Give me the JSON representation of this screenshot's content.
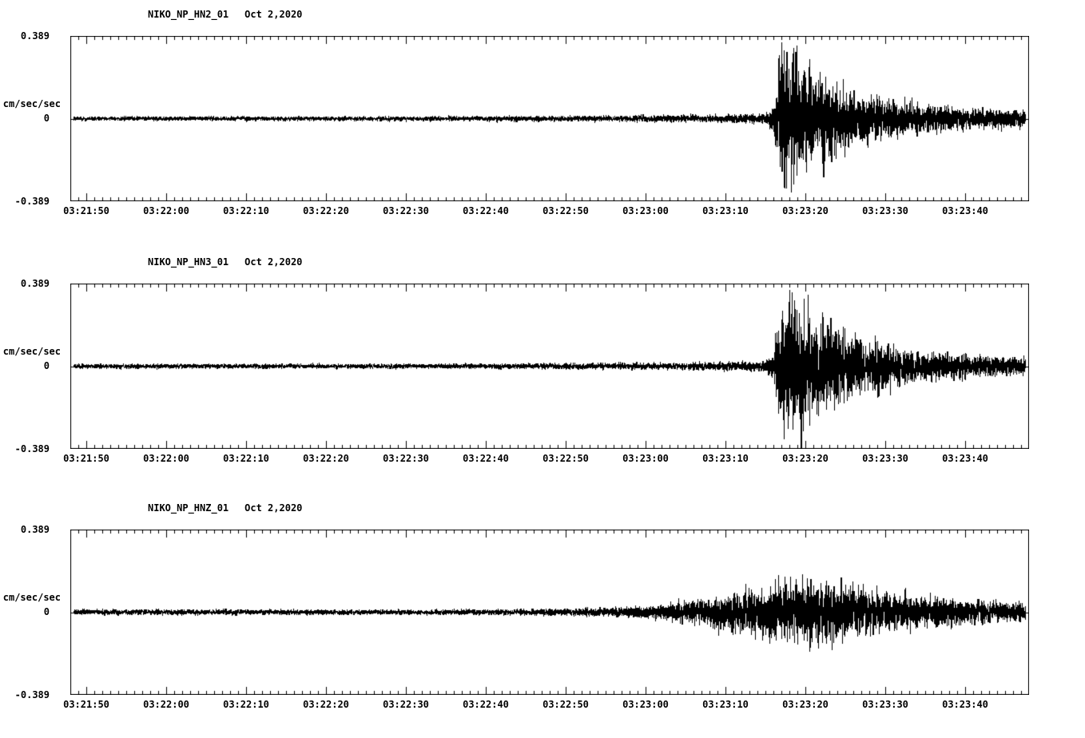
{
  "page": {
    "background": "#ffffff",
    "trace_color": "#000000"
  },
  "chart_data": [
    {
      "type": "line",
      "kind": "seismogram",
      "station": "NIKO_NP_HN2_01",
      "date": "Oct 2,2020",
      "ylabel": "cm/sec/sec",
      "ylim": [
        -0.389,
        0.389
      ],
      "ytick_labels": [
        "0.389",
        "0",
        "-0.389"
      ],
      "x_tick_labels": [
        "03:21:50",
        "03:22:00",
        "03:22:10",
        "03:22:20",
        "03:22:30",
        "03:22:40",
        "03:22:50",
        "03:23:00",
        "03:23:10",
        "03:23:20",
        "03:23:30",
        "03:23:40"
      ],
      "x_start_offset_s": 2,
      "x_tick_interval_s": 10,
      "duration_s": 120,
      "seed": 101,
      "envelope": [
        [
          0,
          0.007
        ],
        [
          30,
          0.0075
        ],
        [
          50,
          0.008
        ],
        [
          60,
          0.009
        ],
        [
          68,
          0.01
        ],
        [
          75,
          0.012
        ],
        [
          80,
          0.013
        ],
        [
          84,
          0.015
        ],
        [
          87,
          0.018
        ],
        [
          88,
          0.05
        ],
        [
          88.6,
          0.16
        ],
        [
          89.3,
          0.24
        ],
        [
          90.2,
          0.22
        ],
        [
          91,
          0.19
        ],
        [
          92,
          0.16
        ],
        [
          93.5,
          0.14
        ],
        [
          95,
          0.12
        ],
        [
          97,
          0.1
        ],
        [
          99,
          0.085
        ],
        [
          101,
          0.07
        ],
        [
          103,
          0.058
        ],
        [
          105,
          0.05
        ],
        [
          108,
          0.042
        ],
        [
          111,
          0.036
        ],
        [
          114,
          0.032
        ],
        [
          117,
          0.028
        ],
        [
          120,
          0.026
        ]
      ]
    },
    {
      "type": "line",
      "kind": "seismogram",
      "station": "NIKO_NP_HN3_01",
      "date": "Oct 2,2020",
      "ylabel": "cm/sec/sec",
      "ylim": [
        -0.389,
        0.389
      ],
      "ytick_labels": [
        "0.389",
        "0",
        "-0.389"
      ],
      "x_tick_labels": [
        "03:21:50",
        "03:22:00",
        "03:22:10",
        "03:22:20",
        "03:22:30",
        "03:22:40",
        "03:22:50",
        "03:23:00",
        "03:23:10",
        "03:23:20",
        "03:23:30",
        "03:23:40"
      ],
      "x_start_offset_s": 2,
      "x_tick_interval_s": 10,
      "duration_s": 120,
      "seed": 202,
      "envelope": [
        [
          0,
          0.008
        ],
        [
          30,
          0.008
        ],
        [
          50,
          0.0085
        ],
        [
          60,
          0.0095
        ],
        [
          68,
          0.011
        ],
        [
          75,
          0.012
        ],
        [
          80,
          0.014
        ],
        [
          84,
          0.016
        ],
        [
          87,
          0.019
        ],
        [
          88,
          0.05
        ],
        [
          88.6,
          0.17
        ],
        [
          89.3,
          0.25
        ],
        [
          90.2,
          0.22
        ],
        [
          91,
          0.2
        ],
        [
          92.5,
          0.17
        ],
        [
          94,
          0.15
        ],
        [
          96,
          0.12
        ],
        [
          98,
          0.1
        ],
        [
          100,
          0.085
        ],
        [
          102,
          0.07
        ],
        [
          104,
          0.06
        ],
        [
          106,
          0.052
        ],
        [
          109,
          0.044
        ],
        [
          112,
          0.038
        ],
        [
          115,
          0.033
        ],
        [
          118,
          0.029
        ],
        [
          120,
          0.027
        ]
      ]
    },
    {
      "type": "line",
      "kind": "seismogram",
      "station": "NIKO_NP_HNZ_01",
      "date": "Oct 2,2020",
      "ylabel": "cm/sec/sec",
      "ylim": [
        -0.389,
        0.389
      ],
      "ytick_labels": [
        "0.389",
        "0",
        "-0.389"
      ],
      "x_tick_labels": [
        "03:21:50",
        "03:22:00",
        "03:22:10",
        "03:22:20",
        "03:22:30",
        "03:22:40",
        "03:22:50",
        "03:23:00",
        "03:23:10",
        "03:23:20",
        "03:23:30",
        "03:23:40"
      ],
      "x_start_offset_s": 2,
      "x_tick_interval_s": 10,
      "duration_s": 120,
      "seed": 303,
      "envelope": [
        [
          0,
          0.009
        ],
        [
          40,
          0.009
        ],
        [
          55,
          0.01
        ],
        [
          62,
          0.012
        ],
        [
          67,
          0.015
        ],
        [
          71,
          0.02
        ],
        [
          75,
          0.03
        ],
        [
          79,
          0.045
        ],
        [
          82,
          0.058
        ],
        [
          85,
          0.072
        ],
        [
          87,
          0.082
        ],
        [
          89,
          0.09
        ],
        [
          91,
          0.098
        ],
        [
          93,
          0.102
        ],
        [
          95,
          0.095
        ],
        [
          97,
          0.088
        ],
        [
          99,
          0.08
        ],
        [
          101,
          0.072
        ],
        [
          103,
          0.063
        ],
        [
          105,
          0.056
        ],
        [
          108,
          0.048
        ],
        [
          111,
          0.042
        ],
        [
          114,
          0.037
        ],
        [
          117,
          0.033
        ],
        [
          120,
          0.03
        ]
      ]
    }
  ]
}
